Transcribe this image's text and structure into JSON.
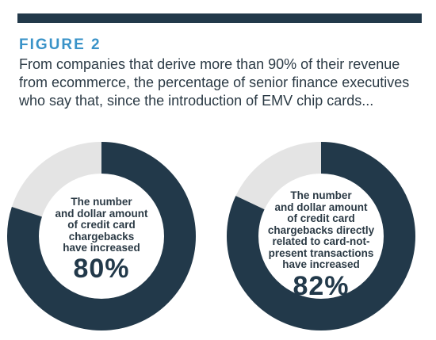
{
  "figure_label": "FIGURE 2",
  "subtitle": "From companies that derive more than 90% of their revenue from ecommerce, the percentage of senior finance executives who say that, since the introduction of EMV chip cards...",
  "colors": {
    "dark": "#22394a",
    "light": "#e4e4e4",
    "accent": "#3a93c8"
  },
  "chart_data": [
    {
      "type": "pie",
      "label": "The number and dollar amount of credit card chargebacks have increased",
      "label_lines": [
        "The number",
        "and dollar amount",
        "of credit card",
        "chargebacks",
        "have increased"
      ],
      "value": 80,
      "value_label": "80%"
    },
    {
      "type": "pie",
      "label": "The number and dollar amount of credit card chargebacks directly related to card-not-present transactions have increased",
      "label_lines": [
        "The number",
        "and dollar amount",
        "of credit card",
        "chargebacks directly",
        "related to card-not-",
        "present transactions",
        "have increased"
      ],
      "value": 82,
      "value_label": "82%"
    }
  ]
}
